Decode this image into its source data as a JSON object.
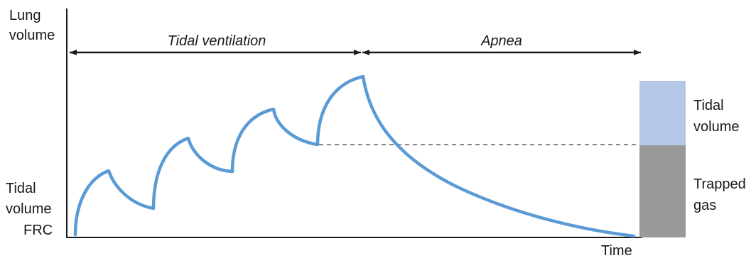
{
  "axes": {
    "y_label": [
      "Lung",
      "volume"
    ],
    "x_label": "Time"
  },
  "left_labels": {
    "tidal_volume": [
      "Tidal",
      "volume"
    ],
    "frc": "FRC"
  },
  "phases": {
    "tidal_ventilation": "Tidal ventilation",
    "apnea": "Apnea"
  },
  "legend": {
    "tidal_volume": [
      "Tidal",
      "volume"
    ],
    "trapped_gas": [
      "Trapped",
      "gas"
    ]
  },
  "colors": {
    "curve": "#5b9bd5",
    "tidal_volume_bar": "#b4c7e7",
    "trapped_gas_bar": "#999999",
    "axis": "#1a1a1a",
    "dashed_line": "#888888"
  }
}
